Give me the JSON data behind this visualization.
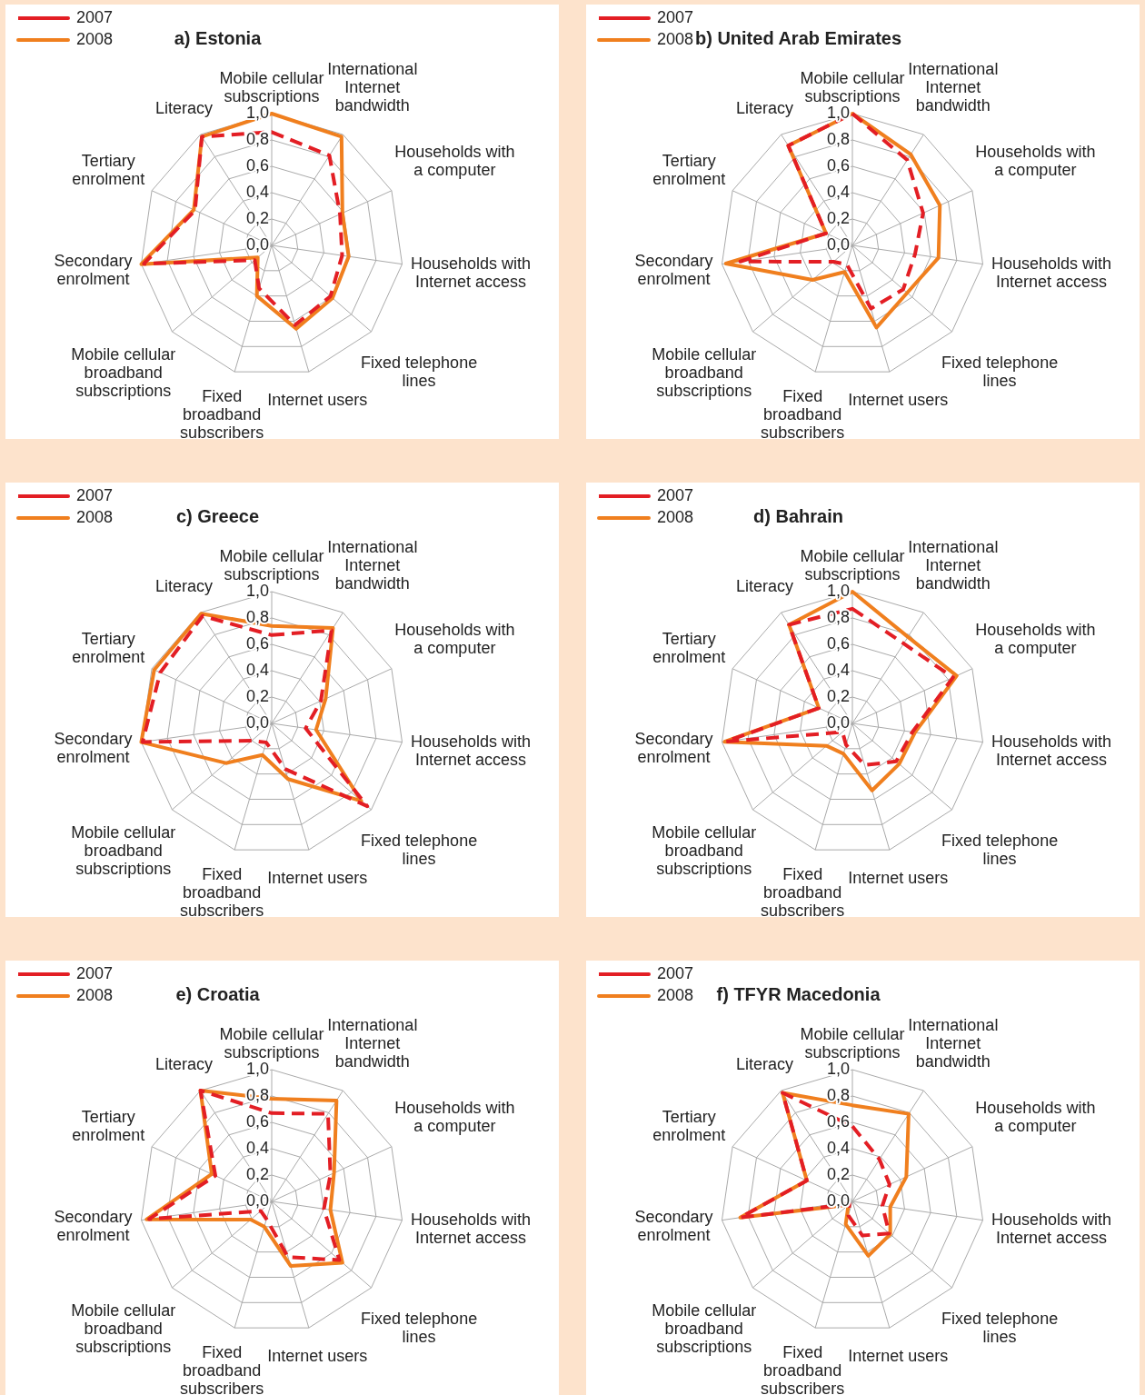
{
  "chart_data": [
    {
      "type": "radar",
      "title": "a) Estonia",
      "categories": [
        "Mobile cellular subscriptions",
        "International Internet bandwidth",
        "Households with a computer",
        "Households with Internet access",
        "Fixed telephone lines",
        "Internet users",
        "Fixed broadband subscribers",
        "Mobile cellular broadband subscriptions",
        "Secondary enrolment",
        "Tertiary enrolment",
        "Literacy"
      ],
      "series": [
        {
          "name": "2007",
          "color": "#e31e24",
          "line_style": "dashed",
          "values": [
            0.86,
            0.81,
            0.57,
            0.54,
            0.59,
            0.63,
            0.34,
            0.17,
            0.98,
            0.64,
            0.98
          ]
        },
        {
          "name": "2008",
          "color": "#f07f1e",
          "line_style": "solid",
          "values": [
            1.0,
            0.98,
            0.59,
            0.59,
            0.61,
            0.66,
            0.4,
            0.14,
            1.0,
            0.65,
            0.98
          ]
        }
      ],
      "ylim": [
        0,
        1
      ],
      "yticks": [
        {
          "value": 0,
          "label": "0,0"
        },
        {
          "value": 0.2,
          "label": "0,2"
        },
        {
          "value": 0.4,
          "label": "0,4"
        },
        {
          "value": 0.6,
          "label": "0,6"
        },
        {
          "value": 0.8,
          "label": "0,8"
        },
        {
          "value": 1,
          "label": "1,0"
        }
      ],
      "grid": true,
      "legend": "top left",
      "marker": "none"
    },
    {
      "type": "radar",
      "title": "b) United Arab Emirates",
      "categories": [
        "Mobile cellular subscriptions",
        "International Internet bandwidth",
        "Households with a computer",
        "Households with Internet access",
        "Fixed telephone lines",
        "Internet users",
        "Fixed broadband subscribers",
        "Mobile cellular broadband subscriptions",
        "Secondary enrolment",
        "Tertiary enrolment",
        "Literacy"
      ],
      "series": [
        {
          "name": "2007",
          "color": "#e31e24",
          "line_style": "dashed",
          "values": [
            1.0,
            0.77,
            0.59,
            0.48,
            0.51,
            0.5,
            0.15,
            0.19,
            0.86,
            0.22,
            0.9
          ]
        },
        {
          "name": "2008",
          "color": "#f07f1e",
          "line_style": "solid",
          "values": [
            1.0,
            0.82,
            0.73,
            0.66,
            0.55,
            0.65,
            0.21,
            0.4,
            0.97,
            0.22,
            0.9
          ]
        }
      ],
      "ylim": [
        0,
        1
      ],
      "yticks": [
        {
          "value": 0,
          "label": "0,0"
        },
        {
          "value": 0.2,
          "label": "0,2"
        },
        {
          "value": 0.4,
          "label": "0,4"
        },
        {
          "value": 0.6,
          "label": "0,6"
        },
        {
          "value": 0.8,
          "label": "0,8"
        },
        {
          "value": 1,
          "label": "1,0"
        }
      ],
      "grid": true,
      "legend": "top left",
      "marker": "none"
    },
    {
      "type": "radar",
      "title": "c) Greece",
      "categories": [
        "Mobile cellular subscriptions",
        "International Internet bandwidth",
        "Households with a computer",
        "Households with Internet access",
        "Fixed telephone lines",
        "Internet users",
        "Fixed broadband subscribers",
        "Mobile cellular broadband subscriptions",
        "Secondary enrolment",
        "Tertiary enrolment",
        "Literacy"
      ],
      "series": [
        {
          "name": "2007",
          "color": "#e31e24",
          "line_style": "dashed",
          "values": [
            0.67,
            0.84,
            0.41,
            0.26,
            0.96,
            0.36,
            0.15,
            0.2,
            0.99,
            0.93,
            0.97
          ]
        },
        {
          "name": "2008",
          "color": "#f07f1e",
          "line_style": "solid",
          "values": [
            0.74,
            0.86,
            0.45,
            0.34,
            0.9,
            0.44,
            0.25,
            0.46,
            1.0,
            0.98,
            0.99
          ]
        }
      ],
      "ylim": [
        0,
        1
      ],
      "yticks": [
        {
          "value": 0,
          "label": "0,0"
        },
        {
          "value": 0.2,
          "label": "0,2"
        },
        {
          "value": 0.4,
          "label": "0,4"
        },
        {
          "value": 0.6,
          "label": "0,6"
        },
        {
          "value": 0.8,
          "label": "0,8"
        },
        {
          "value": 1,
          "label": "1,0"
        }
      ],
      "grid": true,
      "legend": "top left",
      "marker": "none"
    },
    {
      "type": "radar",
      "title": "d) Bahrain",
      "categories": [
        "Mobile cellular subscriptions",
        "International Internet bandwidth",
        "Households with a computer",
        "Households with Internet access",
        "Fixed telephone lines",
        "Internet users",
        "Fixed broadband subscribers",
        "Mobile cellular broadband subscriptions",
        "Secondary enrolment",
        "Tertiary enrolment",
        "Literacy"
      ],
      "series": [
        {
          "name": "2007",
          "color": "#e31e24",
          "line_style": "dashed",
          "values": [
            0.87,
            0.72,
            0.84,
            0.46,
            0.44,
            0.33,
            0.17,
            0.1,
            0.97,
            0.28,
            0.89
          ]
        },
        {
          "name": "2008",
          "color": "#f07f1e",
          "line_style": "solid",
          "values": [
            1.0,
            0.78,
            0.87,
            0.48,
            0.47,
            0.53,
            0.24,
            0.26,
            0.98,
            0.28,
            0.89
          ]
        }
      ],
      "ylim": [
        0,
        1
      ],
      "yticks": [
        {
          "value": 0,
          "label": "0,0"
        },
        {
          "value": 0.2,
          "label": "0,2"
        },
        {
          "value": 0.4,
          "label": "0,4"
        },
        {
          "value": 0.6,
          "label": "0,6"
        },
        {
          "value": 0.8,
          "label": "0,8"
        },
        {
          "value": 1,
          "label": "1,0"
        }
      ],
      "grid": true,
      "legend": "top left",
      "marker": "none"
    },
    {
      "type": "radar",
      "title": "e) Croatia",
      "categories": [
        "Mobile cellular subscriptions",
        "International Internet bandwidth",
        "Households with a computer",
        "Households with Internet access",
        "Fixed telephone lines",
        "Internet users",
        "Fixed broadband subscribers",
        "Mobile cellular broadband subscriptions",
        "Secondary enrolment",
        "Tertiary enrolment",
        "Literacy"
      ],
      "series": [
        {
          "name": "2007",
          "color": "#e31e24",
          "line_style": "dashed",
          "values": [
            0.67,
            0.79,
            0.49,
            0.4,
            0.68,
            0.44,
            0.14,
            0.11,
            0.94,
            0.47,
            1.0
          ]
        },
        {
          "name": "2008",
          "color": "#f07f1e",
          "line_style": "solid",
          "values": [
            0.78,
            0.91,
            0.52,
            0.45,
            0.71,
            0.51,
            0.2,
            0.21,
            0.96,
            0.5,
            1.0
          ]
        }
      ],
      "ylim": [
        0,
        1
      ],
      "yticks": [
        {
          "value": 0,
          "label": "0,0"
        },
        {
          "value": 0.2,
          "label": "0,2"
        },
        {
          "value": 0.4,
          "label": "0,4"
        },
        {
          "value": 0.6,
          "label": "0,6"
        },
        {
          "value": 0.8,
          "label": "0,8"
        },
        {
          "value": 1,
          "label": "1,0"
        }
      ],
      "grid": true,
      "legend": "top left",
      "marker": "none"
    },
    {
      "type": "radar",
      "title": "f) TFYR Macedonia",
      "categories": [
        "Mobile cellular subscriptions",
        "International Internet bandwidth",
        "Households with a computer",
        "Households with Internet access",
        "Fixed telephone lines",
        "Internet users",
        "Fixed broadband subscribers",
        "Mobile cellular broadband subscriptions",
        "Secondary enrolment",
        "Tertiary enrolment",
        "Literacy"
      ],
      "series": [
        {
          "name": "2007",
          "color": "#e31e24",
          "line_style": "dashed",
          "values": [
            0.57,
            0.38,
            0.31,
            0.23,
            0.37,
            0.27,
            0.11,
            0.03,
            0.86,
            0.38,
            0.98
          ]
        },
        {
          "name": "2008",
          "color": "#f07f1e",
          "line_style": "solid",
          "values": [
            0.73,
            0.79,
            0.45,
            0.29,
            0.38,
            0.43,
            0.18,
            0.04,
            0.86,
            0.38,
            0.98
          ]
        }
      ],
      "ylim": [
        0,
        1
      ],
      "yticks": [
        {
          "value": 0,
          "label": "0,0"
        },
        {
          "value": 0.2,
          "label": "0,2"
        },
        {
          "value": 0.4,
          "label": "0,4"
        },
        {
          "value": 0.6,
          "label": "0,6"
        },
        {
          "value": 0.8,
          "label": "0,8"
        },
        {
          "value": 1,
          "label": "1,0"
        }
      ],
      "grid": true,
      "legend": "top left",
      "marker": "none"
    }
  ]
}
